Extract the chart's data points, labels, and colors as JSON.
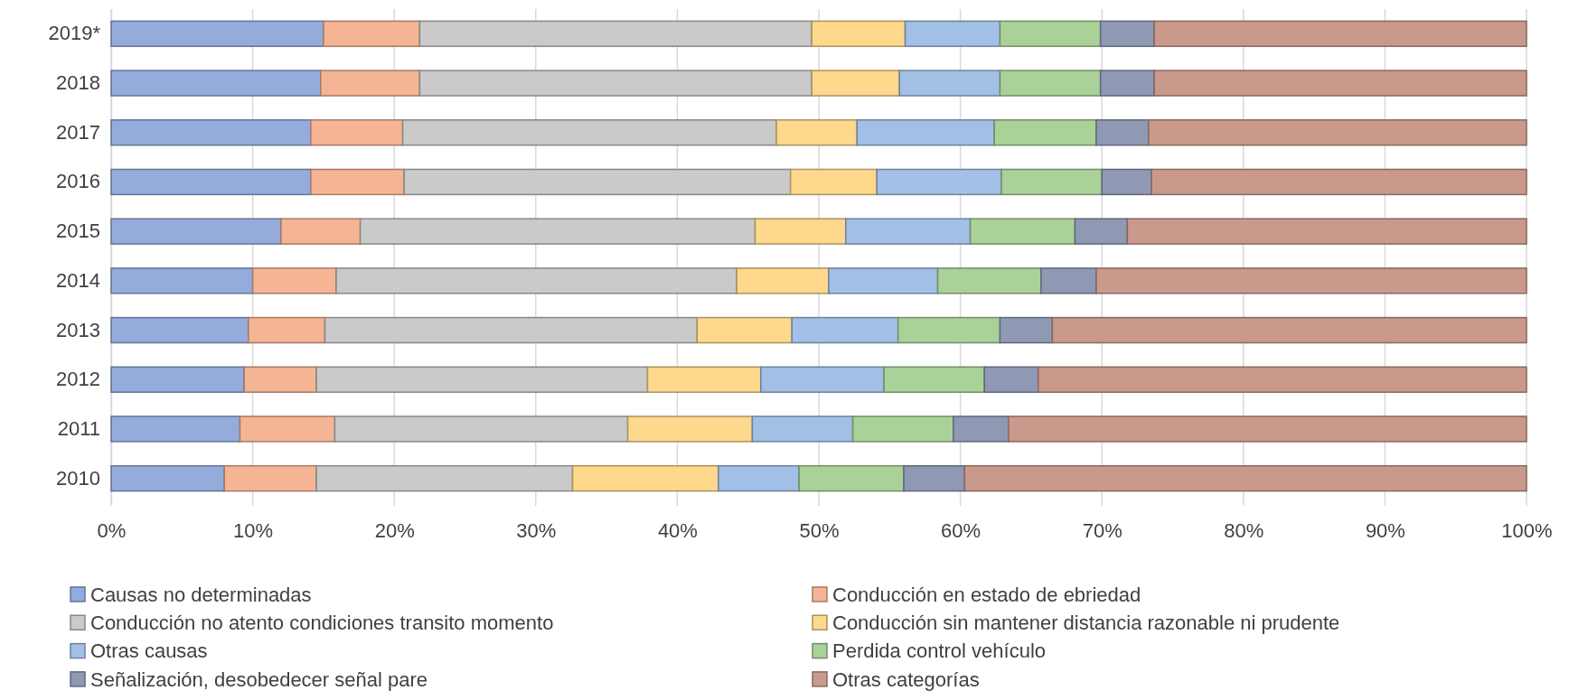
{
  "chart_data": {
    "type": "bar",
    "orientation": "horizontal",
    "stacked": true,
    "categories": [
      "2019*",
      "2018",
      "2017",
      "2016",
      "2015",
      "2014",
      "2013",
      "2012",
      "2011",
      "2010"
    ],
    "xlim": [
      0,
      100
    ],
    "xticks": [
      {
        "value": 0,
        "label": "0%"
      },
      {
        "value": 10,
        "label": "10%"
      },
      {
        "value": 20,
        "label": "20%"
      },
      {
        "value": 30,
        "label": "30%"
      },
      {
        "value": 40,
        "label": "40%"
      },
      {
        "value": 50,
        "label": "50%"
      },
      {
        "value": 60,
        "label": "60%"
      },
      {
        "value": 70,
        "label": "70%"
      },
      {
        "value": 80,
        "label": "80%"
      },
      {
        "value": 90,
        "label": "90%"
      },
      {
        "value": 100,
        "label": "100%"
      }
    ],
    "grid": "x",
    "legend": "bottom",
    "series": [
      {
        "name": "Causas no determinadas",
        "color": "#94abdc",
        "values": [
          15.0,
          14.8,
          14.1,
          14.1,
          12.0,
          10.0,
          9.7,
          9.4,
          9.1,
          8.0
        ]
      },
      {
        "name": "Conducción en estado de ebriedad",
        "color": "#f5b595",
        "values": [
          6.8,
          7.0,
          6.5,
          6.6,
          5.6,
          5.9,
          5.4,
          5.1,
          6.7,
          6.5
        ]
      },
      {
        "name": "Conducción no atento condiciones transito momento",
        "color": "#cacaca",
        "values": [
          27.7,
          27.7,
          26.4,
          27.3,
          27.9,
          28.3,
          26.3,
          23.4,
          20.7,
          18.1
        ]
      },
      {
        "name": "Conducción sin mantener distancia razonable ni prudente",
        "color": "#fdd88d",
        "values": [
          6.6,
          6.2,
          5.7,
          6.1,
          6.4,
          6.5,
          6.7,
          8.0,
          8.8,
          10.3
        ]
      },
      {
        "name": "Otras causas",
        "color": "#a2c0e6",
        "values": [
          6.7,
          7.1,
          9.7,
          8.8,
          8.8,
          7.7,
          7.5,
          8.7,
          7.1,
          5.7
        ]
      },
      {
        "name": "Perdida control vehículo",
        "color": "#aad198",
        "values": [
          7.1,
          7.1,
          7.2,
          7.1,
          7.4,
          7.3,
          7.2,
          7.1,
          7.1,
          7.4
        ]
      },
      {
        "name": "Señalización, desobedecer señal pare",
        "color": "#8f99b4",
        "values": [
          3.8,
          3.8,
          3.7,
          3.5,
          3.7,
          3.9,
          3.7,
          3.8,
          3.9,
          4.3
        ]
      },
      {
        "name": "Otras categorías",
        "color": "#c99a8c",
        "values": [
          26.3,
          26.3,
          26.7,
          26.5,
          28.2,
          30.4,
          33.5,
          34.5,
          36.6,
          39.7
        ]
      }
    ]
  }
}
